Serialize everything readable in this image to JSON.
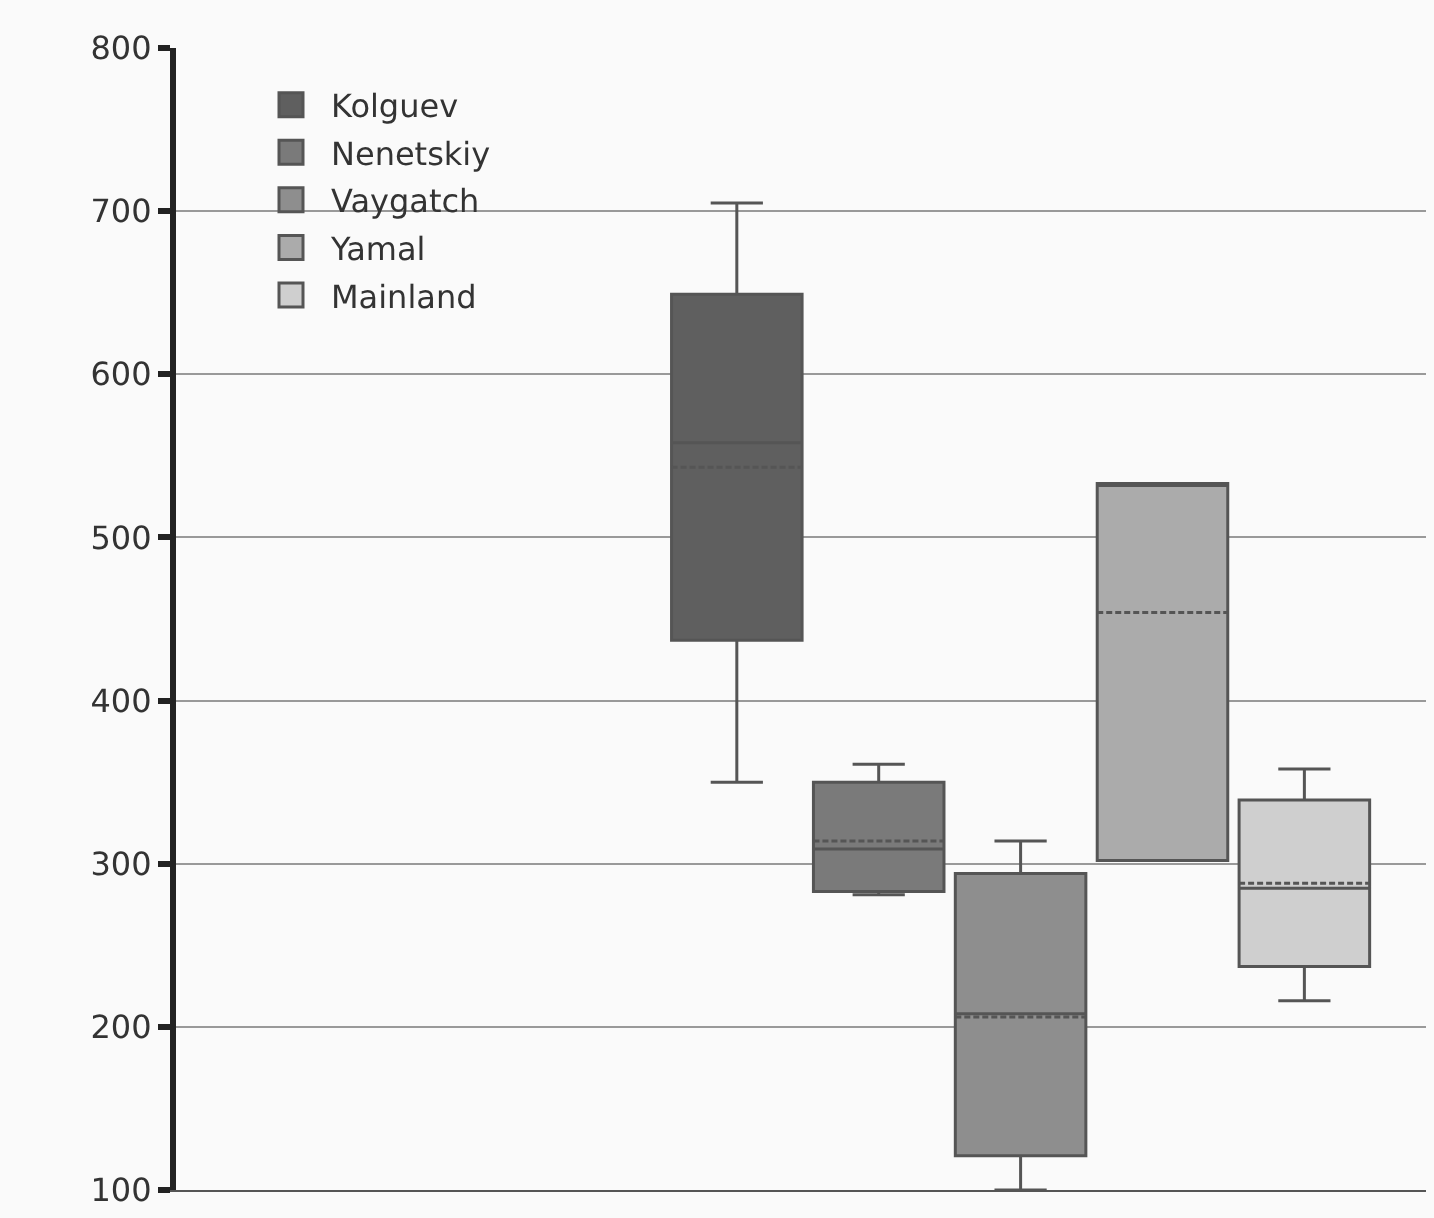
{
  "chart_data": {
    "type": "box",
    "categories": [
      null
    ],
    "series": [
      {
        "name": "Kolguev",
        "color": "#5f5f5f",
        "boxes": [
          {
            "low": 350,
            "q1": 437,
            "median": 558,
            "q3": 649,
            "high": 705,
            "mean": 543
          }
        ]
      },
      {
        "name": "Nenetskiy",
        "color": "#7a7a7a",
        "boxes": [
          {
            "low": 281,
            "q1": 283,
            "median": 309,
            "q3": 350,
            "high": 361,
            "mean": 314
          }
        ]
      },
      {
        "name": "Vaygatch",
        "color": "#8e8e8e",
        "boxes": [
          {
            "low": 100,
            "q1": 121,
            "median": 208,
            "q3": 294,
            "high": 314,
            "mean": 206
          }
        ]
      },
      {
        "name": "Yamal",
        "color": "#ababab",
        "boxes": [
          {
            "low": 302,
            "q1": 302,
            "median": 533,
            "q3": 533,
            "high": 533,
            "mean": 454
          }
        ]
      },
      {
        "name": "Mainland",
        "color": "#cfcfcf",
        "boxes": [
          {
            "low": 216,
            "q1": 237,
            "median": 285,
            "q3": 339,
            "high": 358,
            "mean": 288
          }
        ]
      }
    ],
    "ylim": [
      100,
      800
    ],
    "yticks": [
      100,
      200,
      300,
      400,
      500,
      600,
      700,
      800
    ],
    "grid": "y",
    "legend": "top left",
    "tick_labels": "y"
  }
}
